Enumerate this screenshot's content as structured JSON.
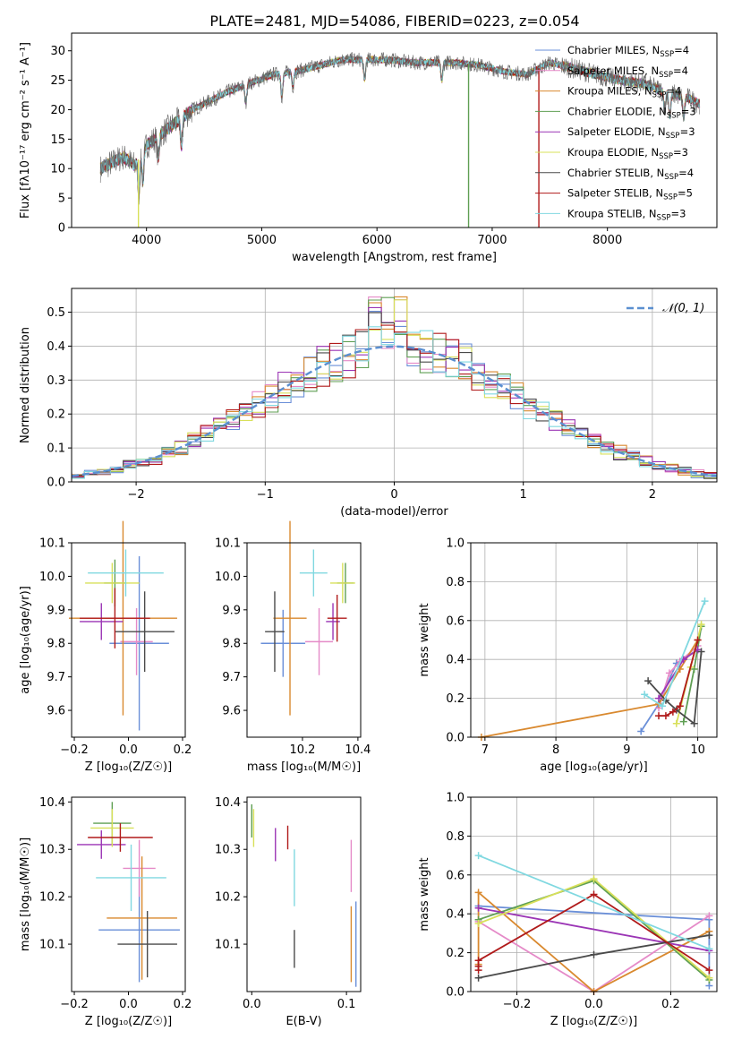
{
  "figure_title": "PLATE=2481, MJD=54086, FIBERID=0223, z=0.054",
  "colors": {
    "Chabrier MILES": "#6a8fd8",
    "Salpeter MILES": "#e58ac8",
    "Kroupa MILES": "#d9892f",
    "Chabrier ELODIE": "#5f9f53",
    "Salpeter ELODIE": "#9b35b5",
    "Kroupa ELODIE": "#d8e05a",
    "Chabrier STELIB": "#4a4a4a",
    "Salpeter STELIB": "#b01a1a",
    "Kroupa STELIB": "#80d8e0"
  },
  "chart_data": [
    {
      "id": "spectrum",
      "type": "line",
      "title": "PLATE=2481, MJD=54086, FIBERID=0223, z=0.054",
      "xlabel": "wavelength [Angstrom, rest frame]",
      "ylabel": "Flux [fλ10⁻¹⁷ erg cm⁻² s⁻¹ A⁻¹]",
      "xlim": [
        3350,
        8950
      ],
      "ylim": [
        0,
        33
      ],
      "xticks": [
        "4000",
        "5000",
        "6000",
        "7000",
        "8000"
      ],
      "yticks": [
        "0",
        "5",
        "10",
        "15",
        "20",
        "25",
        "30"
      ],
      "legend_position": "right",
      "legend": [
        {
          "label": "Chabrier MILES, N",
          "sub": "SSP",
          "tail": "=4"
        },
        {
          "label": "Salpeter MILES, N",
          "sub": "SSP",
          "tail": "=4"
        },
        {
          "label": "Kroupa MILES, N",
          "sub": "SSP",
          "tail": "=4"
        },
        {
          "label": "Chabrier ELODIE, N",
          "sub": "SSP",
          "tail": "=3"
        },
        {
          "label": "Salpeter ELODIE, N",
          "sub": "SSP",
          "tail": "=3"
        },
        {
          "label": "Kroupa ELODIE, N",
          "sub": "SSP",
          "tail": "=3"
        },
        {
          "label": "Chabrier STELIB, N",
          "sub": "SSP",
          "tail": "=4"
        },
        {
          "label": "Salpeter STELIB, N",
          "sub": "SSP",
          "tail": "=5"
        },
        {
          "label": "Kroupa STELIB, N",
          "sub": "SSP",
          "tail": "=3"
        }
      ],
      "continuum_x": [
        3600,
        3700,
        3800,
        3900,
        4000,
        4100,
        4200,
        4300,
        4400,
        4500,
        4700,
        4900,
        5100,
        5300,
        5500,
        5700,
        5900,
        6100,
        6300,
        6500,
        6700,
        6900,
        7100,
        7300,
        7500,
        7700,
        7900,
        8100,
        8300,
        8500,
        8700,
        8800
      ],
      "continuum_y": [
        10,
        11,
        12,
        10.5,
        14,
        15.5,
        17,
        18.5,
        20,
        21,
        23,
        24.5,
        26,
        26.5,
        27.5,
        28.5,
        28.5,
        28.5,
        28,
        28,
        28,
        27.5,
        26.5,
        26,
        28,
        27,
        26,
        25,
        24.5,
        23,
        22,
        21
      ],
      "absorption_features": [
        {
          "x": 3934,
          "depth": 6
        },
        {
          "x": 3969,
          "depth": 5
        },
        {
          "x": 4101,
          "depth": 4
        },
        {
          "x": 4304,
          "depth": 5
        },
        {
          "x": 4861,
          "depth": 3
        },
        {
          "x": 5175,
          "depth": 4
        },
        {
          "x": 5270,
          "depth": 2.5
        },
        {
          "x": 5893,
          "depth": 3.5
        },
        {
          "x": 6563,
          "depth": 3
        },
        {
          "x": 8498,
          "depth": 3
        },
        {
          "x": 8542,
          "depth": 4
        },
        {
          "x": 8662,
          "depth": 3.5
        }
      ],
      "drop_lines": [
        {
          "x": 3930,
          "series": "Kroupa ELODIE"
        },
        {
          "x": 6795,
          "series": "Chabrier ELODIE"
        },
        {
          "x": 7405,
          "series": "Salpeter STELIB"
        }
      ]
    },
    {
      "id": "residuals",
      "type": "histogram",
      "xlabel": "(data-model)/error",
      "ylabel": "Normed distribution",
      "xlim": [
        -2.5,
        2.5
      ],
      "ylim": [
        0,
        0.57
      ],
      "xticks": [
        "−2",
        "−1",
        "0",
        "1",
        "2"
      ],
      "yticks": [
        "0.0",
        "0.1",
        "0.2",
        "0.3",
        "0.4",
        "0.5"
      ],
      "grid": true,
      "legend_position": "top-right",
      "reference_curve_label": "𝒩(0, 1)",
      "bin_width": 0.1
    },
    {
      "id": "age-vs-Z",
      "type": "errorbar",
      "xlabel": "Z [log₁₀(Z/Z☉)]",
      "ylabel": "age  [log₁₀(age/yr)]",
      "xlim": [
        -0.21,
        0.21
      ],
      "ylim": [
        9.52,
        10.1
      ],
      "xticks": [
        "−0.2",
        "0.0",
        "0.2"
      ],
      "yticks": [
        "9.6",
        "9.7",
        "9.8",
        "9.9",
        "10.0",
        "10.1"
      ],
      "points": [
        {
          "series": "Chabrier MILES",
          "x": 0.04,
          "xerr": 0.11,
          "y": 9.8,
          "yerr": 0.26
        },
        {
          "series": "Salpeter MILES",
          "x": 0.03,
          "xerr": 0.06,
          "y": 9.805,
          "yerr": 0.1
        },
        {
          "series": "Kroupa MILES",
          "x": -0.02,
          "xerr": 0.2,
          "y": 9.875,
          "yerr": 0.29
        },
        {
          "series": "Chabrier ELODIE",
          "x": -0.05,
          "xerr": 0.04,
          "y": 9.98,
          "yerr": 0.07
        },
        {
          "series": "Salpeter ELODIE",
          "x": -0.1,
          "xerr": 0.08,
          "y": 9.865,
          "yerr": 0.055
        },
        {
          "series": "Kroupa ELODIE",
          "x": -0.06,
          "xerr": 0.1,
          "y": 9.98,
          "yerr": 0.06
        },
        {
          "series": "Chabrier STELIB",
          "x": 0.06,
          "xerr": 0.11,
          "y": 9.835,
          "yerr": 0.12
        },
        {
          "series": "Salpeter STELIB",
          "x": -0.05,
          "xerr": 0.13,
          "y": 9.875,
          "yerr": 0.09
        },
        {
          "series": "Kroupa STELIB",
          "x": -0.01,
          "xerr": 0.14,
          "y": 10.01,
          "yerr": 0.07
        }
      ]
    },
    {
      "id": "age-vs-mass",
      "type": "errorbar",
      "xlabel": "mass [log₁₀(M/M☉)]",
      "xlim": [
        10.0,
        10.41
      ],
      "ylim": [
        9.52,
        10.1
      ],
      "xticks": [
        "10.2",
        "10.4"
      ],
      "xtick_values": [
        10.2,
        10.4
      ],
      "yticks": [
        "9.6",
        "9.7",
        "9.8",
        "9.9",
        "10.0",
        "10.1"
      ],
      "points": [
        {
          "series": "Chabrier MILES",
          "x": 10.13,
          "xerr": 0.08,
          "y": 9.8,
          "yerr": 0.1
        },
        {
          "series": "Salpeter MILES",
          "x": 10.26,
          "xerr": 0.05,
          "y": 9.805,
          "yerr": 0.1
        },
        {
          "series": "Kroupa MILES",
          "x": 10.155,
          "xerr": 0.06,
          "y": 9.875,
          "yerr": 0.29
        },
        {
          "series": "Chabrier ELODIE",
          "x": 10.355,
          "xerr": 0.03,
          "y": 9.98,
          "yerr": 0.06
        },
        {
          "series": "Salpeter ELODIE",
          "x": 10.31,
          "xerr": 0.025,
          "y": 9.865,
          "yerr": 0.055
        },
        {
          "series": "Kroupa ELODIE",
          "x": 10.345,
          "xerr": 0.045,
          "y": 9.98,
          "yerr": 0.06
        },
        {
          "series": "Chabrier STELIB",
          "x": 10.1,
          "xerr": 0.035,
          "y": 9.835,
          "yerr": 0.12
        },
        {
          "series": "Salpeter STELIB",
          "x": 10.325,
          "xerr": 0.035,
          "y": 9.875,
          "yerr": 0.07
        },
        {
          "series": "Kroupa STELIB",
          "x": 10.24,
          "xerr": 0.05,
          "y": 10.01,
          "yerr": 0.07
        }
      ]
    },
    {
      "id": "weight-vs-age",
      "type": "line",
      "xlabel": "age  [log₁₀(age/yr)]",
      "ylabel": "mass weight",
      "xlim": [
        6.8,
        10.27
      ],
      "ylim": [
        0,
        1
      ],
      "xticks": [
        "7",
        "8",
        "9",
        "10"
      ],
      "yticks": [
        "0.0",
        "0.2",
        "0.4",
        "0.6",
        "0.8",
        "1.0"
      ],
      "grid": true,
      "series": [
        {
          "name": "Chabrier MILES",
          "x": [
            9.2,
            9.45,
            9.7,
            10.0
          ],
          "y": [
            0.03,
            0.17,
            0.38,
            0.45
          ]
        },
        {
          "name": "Salpeter MILES",
          "x": [
            9.45,
            9.6,
            9.75,
            10.0
          ],
          "y": [
            0.15,
            0.33,
            0.39,
            0.47
          ]
        },
        {
          "name": "Kroupa MILES",
          "x": [
            6.95,
            9.45,
            9.75,
            10.0
          ],
          "y": [
            0.0,
            0.17,
            0.35,
            0.5
          ]
        },
        {
          "name": "Chabrier ELODIE",
          "x": [
            9.8,
            9.95,
            10.05
          ],
          "y": [
            0.08,
            0.35,
            0.57
          ]
        },
        {
          "name": "Salpeter ELODIE",
          "x": [
            9.45,
            9.8,
            10.0
          ],
          "y": [
            0.2,
            0.4,
            0.45
          ]
        },
        {
          "name": "Kroupa ELODIE",
          "x": [
            9.7,
            9.9,
            10.05
          ],
          "y": [
            0.07,
            0.36,
            0.58
          ]
        },
        {
          "name": "Chabrier STELIB",
          "x": [
            9.3,
            9.55,
            9.7,
            9.95,
            10.05
          ],
          "y": [
            0.29,
            0.19,
            0.14,
            0.07,
            0.44
          ]
        },
        {
          "name": "Salpeter STELIB",
          "x": [
            9.45,
            9.55,
            9.65,
            9.75,
            10.0
          ],
          "y": [
            0.11,
            0.11,
            0.13,
            0.16,
            0.5
          ]
        },
        {
          "name": "Kroupa STELIB",
          "x": [
            9.25,
            9.5,
            10.1
          ],
          "y": [
            0.22,
            0.16,
            0.7
          ]
        }
      ]
    },
    {
      "id": "mass-vs-Z",
      "type": "errorbar",
      "xlabel": "Z [log₁₀(Z/Z☉)]",
      "ylabel": "mass [log₁₀(M/M☉)]",
      "xlim": [
        -0.21,
        0.21
      ],
      "ylim": [
        10.0,
        10.41
      ],
      "xticks": [
        "−0.2",
        "0.0",
        "0.2"
      ],
      "yticks": [
        "10.1",
        "10.2",
        "10.3",
        "10.4"
      ],
      "points": [
        {
          "series": "Chabrier MILES",
          "x": 0.04,
          "xerr": 0.15,
          "y": 10.13,
          "yerr": 0.11
        },
        {
          "series": "Salpeter MILES",
          "x": 0.04,
          "xerr": 0.06,
          "y": 10.26,
          "yerr": 0.06
        },
        {
          "series": "Kroupa MILES",
          "x": 0.05,
          "xerr": 0.13,
          "y": 10.155,
          "yerr": 0.13
        },
        {
          "series": "Chabrier ELODIE",
          "x": -0.06,
          "xerr": 0.07,
          "y": 10.355,
          "yerr": 0.045
        },
        {
          "series": "Salpeter ELODIE",
          "x": -0.1,
          "xerr": 0.09,
          "y": 10.31,
          "yerr": 0.03
        },
        {
          "series": "Kroupa ELODIE",
          "x": -0.06,
          "xerr": 0.08,
          "y": 10.345,
          "yerr": 0.04
        },
        {
          "series": "Chabrier STELIB",
          "x": 0.07,
          "xerr": 0.11,
          "y": 10.1,
          "yerr": 0.07
        },
        {
          "series": "Salpeter STELIB",
          "x": -0.03,
          "xerr": 0.12,
          "y": 10.325,
          "yerr": 0.03
        },
        {
          "series": "Kroupa STELIB",
          "x": 0.01,
          "xerr": 0.13,
          "y": 10.24,
          "yerr": 0.07
        }
      ]
    },
    {
      "id": "mass-vs-ebv",
      "type": "errorbar",
      "xlabel": "E(B-V)",
      "xlim": [
        -0.005,
        0.115
      ],
      "ylim": [
        10.0,
        10.41
      ],
      "xticks": [
        "0.0",
        "0.1"
      ],
      "xtick_values": [
        0.0,
        0.1
      ],
      "yticks": [
        "10.1",
        "10.2",
        "10.3",
        "10.4"
      ],
      "points": [
        {
          "series": "Chabrier MILES",
          "x": 0.11,
          "xerr": 0,
          "y": 10.1,
          "yerr": 0.09
        },
        {
          "series": "Salpeter MILES",
          "x": 0.105,
          "xerr": 0,
          "y": 10.265,
          "yerr": 0.055
        },
        {
          "series": "Kroupa MILES",
          "x": 0.105,
          "xerr": 0,
          "y": 10.1,
          "yerr": 0.08
        },
        {
          "series": "Chabrier ELODIE",
          "x": 0.0,
          "xerr": 0,
          "y": 10.36,
          "yerr": 0.035
        },
        {
          "series": "Salpeter ELODIE",
          "x": 0.025,
          "xerr": 0,
          "y": 10.31,
          "yerr": 0.035
        },
        {
          "series": "Kroupa ELODIE",
          "x": 0.002,
          "xerr": 0,
          "y": 10.345,
          "yerr": 0.04
        },
        {
          "series": "Chabrier STELIB",
          "x": 0.045,
          "xerr": 0,
          "y": 10.09,
          "yerr": 0.04
        },
        {
          "series": "Salpeter STELIB",
          "x": 0.038,
          "xerr": 0,
          "y": 10.325,
          "yerr": 0.025
        },
        {
          "series": "Kroupa STELIB",
          "x": 0.045,
          "xerr": 0,
          "y": 10.24,
          "yerr": 0.06
        }
      ]
    },
    {
      "id": "weight-vs-Z",
      "type": "line",
      "xlabel": "Z [log₁₀(Z/Z☉)]",
      "ylabel": "mass weight",
      "xlim": [
        -0.32,
        0.32
      ],
      "ylim": [
        0,
        1
      ],
      "xticks": [
        "−0.2",
        "0.0",
        "0.2"
      ],
      "yticks": [
        "0.0",
        "0.2",
        "0.4",
        "0.6",
        "0.8",
        "1.0"
      ],
      "grid": true,
      "series": [
        {
          "name": "Chabrier MILES",
          "x": [
            -0.3,
            0.3,
            0.3
          ],
          "y": [
            0.44,
            0.37,
            0.03
          ]
        },
        {
          "name": "Salpeter MILES",
          "x": [
            -0.3,
            0.0,
            0.3
          ],
          "y": [
            0.36,
            0.0,
            0.39
          ]
        },
        {
          "name": "Kroupa MILES",
          "x": [
            -0.3,
            -0.3,
            0.0,
            0.3
          ],
          "y": [
            0.14,
            0.51,
            0.0,
            0.31
          ]
        },
        {
          "name": "Chabrier ELODIE",
          "x": [
            -0.3,
            0.0,
            0.3
          ],
          "y": [
            0.37,
            0.57,
            0.06
          ]
        },
        {
          "name": "Salpeter ELODIE",
          "x": [
            -0.3,
            0.3
          ],
          "y": [
            0.43,
            0.21
          ]
        },
        {
          "name": "Kroupa ELODIE",
          "x": [
            -0.3,
            0.0,
            0.3
          ],
          "y": [
            0.35,
            0.58,
            0.07
          ]
        },
        {
          "name": "Chabrier STELIB",
          "x": [
            -0.3,
            0.0,
            0.3
          ],
          "y": [
            0.07,
            0.19,
            0.29
          ]
        },
        {
          "name": "Salpeter STELIB",
          "x": [
            -0.3,
            -0.3,
            -0.3,
            0.0,
            0.3
          ],
          "y": [
            0.11,
            0.13,
            0.16,
            0.5,
            0.11
          ]
        },
        {
          "name": "Kroupa STELIB",
          "x": [
            -0.3,
            0.3
          ],
          "y": [
            0.7,
            0.22
          ]
        }
      ]
    }
  ]
}
